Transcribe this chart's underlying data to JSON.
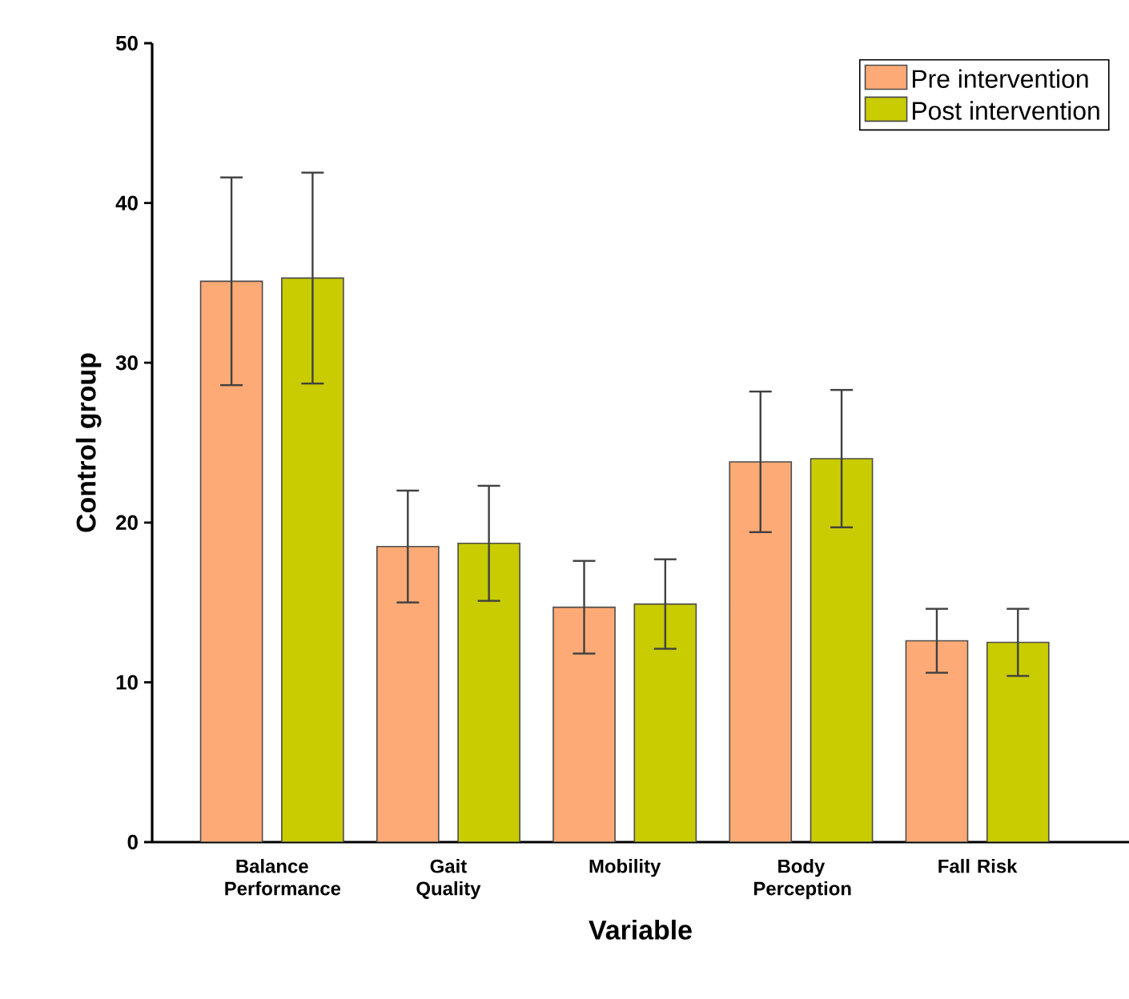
{
  "chart_data": {
    "type": "bar",
    "xlabel": "Variable",
    "ylabel": "Control group",
    "categories": [
      "Balance Performance",
      "Gait Quality",
      "Mobility",
      "Body Perception",
      "Fall Risk"
    ],
    "series": [
      {
        "name": "Pre intervention",
        "color": "#fdaa76",
        "values": [
          35.1,
          18.5,
          14.7,
          23.8,
          12.6
        ],
        "errors": [
          [
            28.6,
            41.6
          ],
          [
            15.0,
            22.0
          ],
          [
            11.8,
            17.6
          ],
          [
            19.4,
            28.2
          ],
          [
            10.6,
            14.6
          ]
        ]
      },
      {
        "name": "Post intervention",
        "color": "#c8cc00",
        "values": [
          35.3,
          18.7,
          14.9,
          24.0,
          12.5
        ],
        "errors": [
          [
            28.7,
            41.9
          ],
          [
            15.1,
            22.3
          ],
          [
            12.1,
            17.7
          ],
          [
            19.7,
            28.3
          ],
          [
            10.4,
            14.6
          ]
        ]
      }
    ],
    "ylim": [
      0,
      50
    ],
    "yticks": [
      0,
      10,
      20,
      30,
      40,
      50
    ],
    "grid": false,
    "legend": "top right"
  }
}
